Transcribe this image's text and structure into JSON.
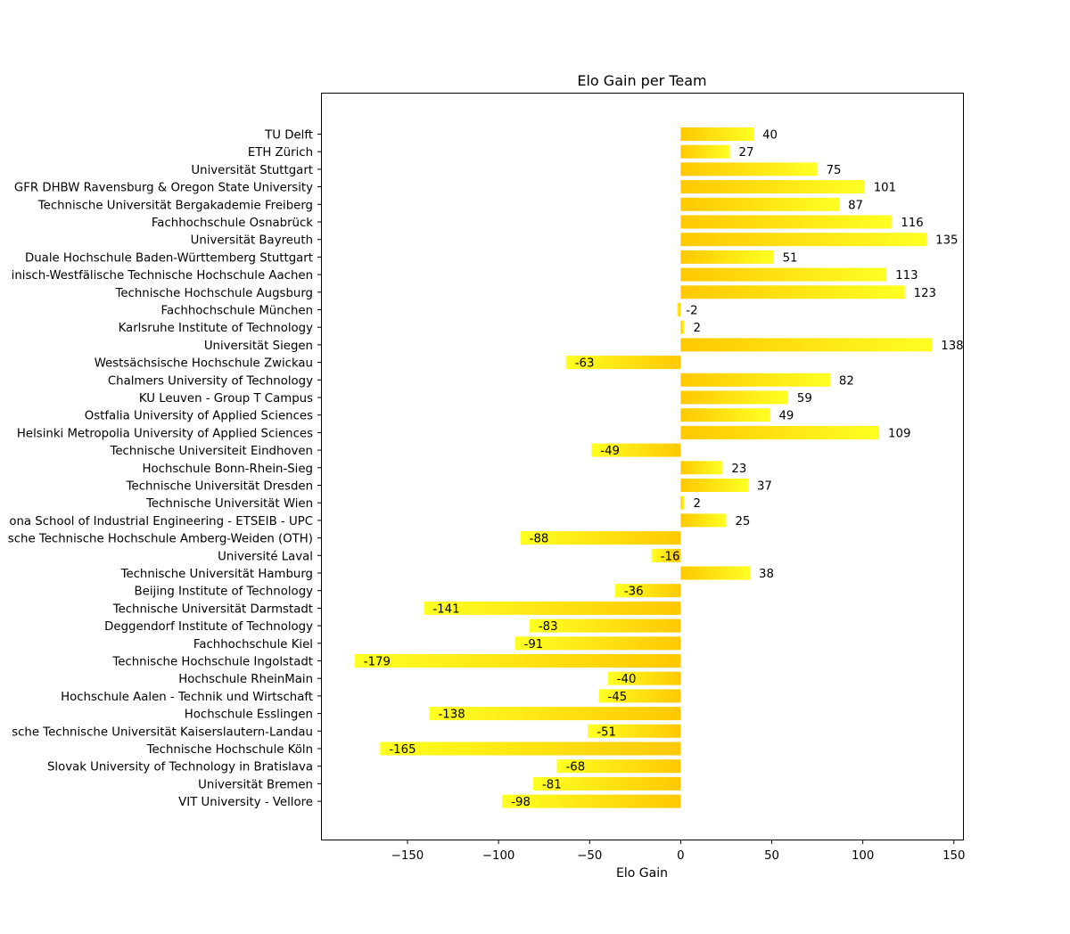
{
  "chart_data": {
    "type": "bar",
    "orientation": "horizontal",
    "title": "Elo Gain per Team",
    "xlabel": "Elo Gain",
    "ylabel": "",
    "xlim": [
      -197,
      155
    ],
    "xticks": [
      {
        "value": -150,
        "label": "−150"
      },
      {
        "value": -100,
        "label": "−100"
      },
      {
        "value": -50,
        "label": "−50"
      },
      {
        "value": 0,
        "label": "0"
      },
      {
        "value": 50,
        "label": "50"
      },
      {
        "value": 100,
        "label": "100"
      },
      {
        "value": 150,
        "label": "150"
      }
    ],
    "grid": false,
    "colors": {
      "bar_light": "#ffff22",
      "bar_dark": "#ffc800",
      "axis": "#000000",
      "background": "#ffffff"
    },
    "categories": [
      "TU Delft",
      "ETH Zürich",
      "Universität Stuttgart",
      "GFR DHBW Ravensburg & Oregon State University",
      "Technische Universität Bergakademie Freiberg",
      "Fachhochschule Osnabrück",
      "Universität Bayreuth",
      "Duale Hochschule Baden-Württemberg Stuttgart",
      "inisch-Westfälische Technische Hochschule Aachen",
      "Technische Hochschule Augsburg",
      "Fachhochschule München",
      "Karlsruhe Institute of Technology",
      "Universität Siegen",
      "Westsächsische Hochschule Zwickau",
      "Chalmers University of Technology",
      "KU Leuven - Group T Campus",
      "Ostfalia University of Applied Sciences",
      "Helsinki Metropolia University of Applied Sciences",
      "Technische Universiteit Eindhoven",
      "Hochschule Bonn-Rhein-Sieg",
      "Technische Universität Dresden",
      "Technische Universität Wien",
      "ona School of Industrial Engineering - ETSEIB - UPC",
      "sche Technische Hochschule Amberg-Weiden (OTH)",
      "Université Laval",
      "Technische Universität Hamburg",
      "Beijing Institute of Technology",
      "Technische Universität Darmstadt",
      "Deggendorf Institute of Technology",
      "Fachhochschule Kiel",
      "Technische Hochschule Ingolstadt",
      "Hochschule RheinMain",
      "Hochschule Aalen - Technik und Wirtschaft",
      "Hochschule Esslingen",
      "sche Technische Universität Kaiserslautern-Landau",
      "Technische Hochschule Köln",
      "Slovak University of Technology in Bratislava",
      "Universität Bremen",
      "VIT University - Vellore"
    ],
    "values": [
      40,
      27,
      75,
      101,
      87,
      116,
      135,
      51,
      113,
      123,
      -2,
      2,
      138,
      -63,
      82,
      59,
      49,
      109,
      -49,
      23,
      37,
      2,
      25,
      -88,
      -16,
      38,
      -36,
      -141,
      -83,
      -91,
      -179,
      -40,
      -45,
      -138,
      -51,
      -165,
      -68,
      -81,
      -98
    ]
  }
}
